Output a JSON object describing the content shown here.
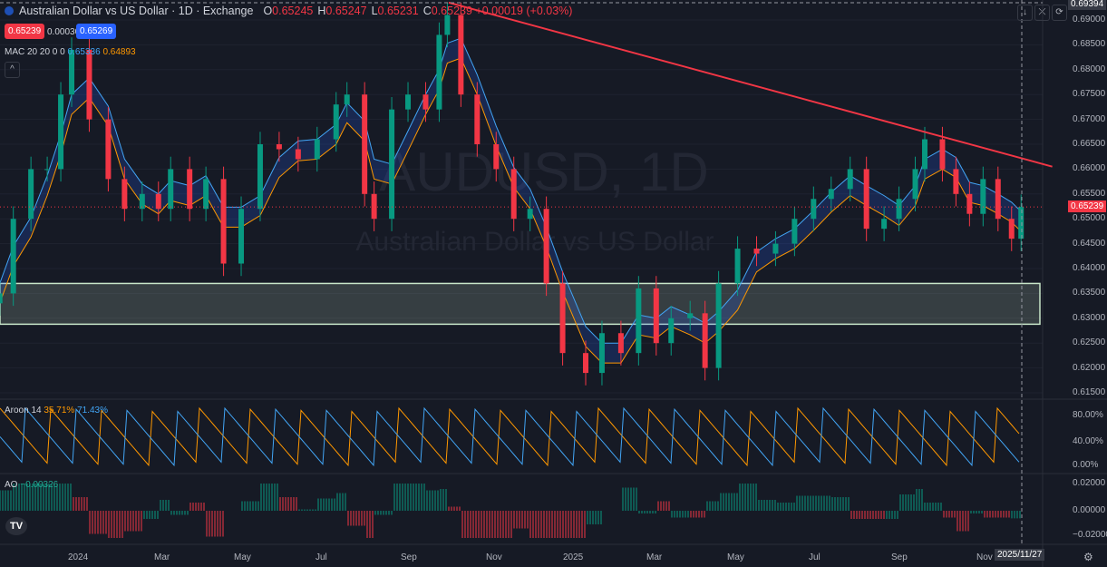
{
  "header": {
    "title": "Australian Dollar vs US Dollar · 1D · Exchange",
    "open": "0.65245",
    "high": "0.65247",
    "low": "0.65231",
    "close": "0.65239",
    "change": "+0.00019 (+0.03%)",
    "bid": "0.65239",
    "spread": "0.00030",
    "ask": "0.65269",
    "watermark_symbol": "AUDUSD, 1D",
    "watermark_name": "Australian Dollar vs US Dollar"
  },
  "indicators": {
    "mac": {
      "label": "MAC 20 20 0 0",
      "upper": "0.65336",
      "lower": "0.64893"
    },
    "aroon": {
      "label": "Aroon 14",
      "up": "35.71%",
      "down": "71.43%"
    },
    "ao": {
      "label": "AO",
      "value": "−0.00326"
    }
  },
  "price_axis": {
    "top_label": "0.69394",
    "current": "0.65239",
    "ticks": [
      "0.69000",
      "0.68500",
      "0.68000",
      "0.67500",
      "0.67000",
      "0.66500",
      "0.66000",
      "0.65500",
      "0.65000",
      "0.64500",
      "0.64000",
      "0.63500",
      "0.63000",
      "0.62500",
      "0.62000",
      "0.61500"
    ]
  },
  "aroon_axis": [
    "80.00%",
    "40.00%",
    "0.00%"
  ],
  "ao_axis": [
    "0.02000",
    "0.00000",
    "−0.02000"
  ],
  "time_axis": {
    "ticks": [
      "2024",
      "Mar",
      "May",
      "Jul",
      "Sep",
      "Nov",
      "2025",
      "Mar",
      "May",
      "Jul",
      "Sep",
      "Nov"
    ],
    "cursor": "2025/11/27"
  },
  "colors": {
    "up": "#089981",
    "down": "#f23645",
    "upper": "#2962ff",
    "band": "#42a5f5",
    "lower": "#ff9800",
    "trend": "#f23645",
    "zone": "#c8e6c9"
  },
  "chart_data": {
    "type": "candlestick",
    "xlabel": "",
    "ylabel": "",
    "ylim": [
      0.6125,
      0.6939
    ],
    "closes": [
      [
        "2023-11-05",
        0.635
      ],
      [
        "2023-11-15",
        0.65
      ],
      [
        "2023-11-28",
        0.66
      ],
      [
        "2023-12-10",
        0.66
      ],
      [
        "2023-12-20",
        0.675
      ],
      [
        "2023-12-28",
        0.684
      ],
      [
        "2024-01-10",
        0.67
      ],
      [
        "2024-01-24",
        0.658
      ],
      [
        "2024-02-05",
        0.652
      ],
      [
        "2024-02-18",
        0.655
      ],
      [
        "2024-03-01",
        0.652
      ],
      [
        "2024-03-10",
        0.66
      ],
      [
        "2024-03-24",
        0.652
      ],
      [
        "2024-04-05",
        0.658
      ],
      [
        "2024-04-18",
        0.641
      ],
      [
        "2024-05-01",
        0.652
      ],
      [
        "2024-05-15",
        0.665
      ],
      [
        "2024-05-29",
        0.664
      ],
      [
        "2024-06-12",
        0.662
      ],
      [
        "2024-06-26",
        0.666
      ],
      [
        "2024-07-10",
        0.673
      ],
      [
        "2024-07-18",
        0.675
      ],
      [
        "2024-07-31",
        0.655
      ],
      [
        "2024-08-07",
        0.65
      ],
      [
        "2024-08-20",
        0.672
      ],
      [
        "2024-09-01",
        0.675
      ],
      [
        "2024-09-14",
        0.672
      ],
      [
        "2024-09-24",
        0.687
      ],
      [
        "2024-09-30",
        0.691
      ],
      [
        "2024-10-10",
        0.675
      ],
      [
        "2024-10-22",
        0.665
      ],
      [
        "2024-11-05",
        0.66
      ],
      [
        "2024-11-18",
        0.65
      ],
      [
        "2024-11-30",
        0.652
      ],
      [
        "2024-12-12",
        0.637
      ],
      [
        "2024-12-24",
        0.623
      ],
      [
        "2025-01-10",
        0.619
      ],
      [
        "2025-01-22",
        0.627
      ],
      [
        "2025-02-05",
        0.623
      ],
      [
        "2025-02-18",
        0.636
      ],
      [
        "2025-03-03",
        0.625
      ],
      [
        "2025-03-14",
        0.63
      ],
      [
        "2025-03-28",
        0.631
      ],
      [
        "2025-04-08",
        0.62
      ],
      [
        "2025-04-18",
        0.637
      ],
      [
        "2025-05-02",
        0.644
      ],
      [
        "2025-05-16",
        0.643
      ],
      [
        "2025-05-30",
        0.645
      ],
      [
        "2025-06-13",
        0.65
      ],
      [
        "2025-06-27",
        0.654
      ],
      [
        "2025-07-10",
        0.656
      ],
      [
        "2025-07-24",
        0.66
      ],
      [
        "2025-08-05",
        0.648
      ],
      [
        "2025-08-18",
        0.65
      ],
      [
        "2025-08-29",
        0.654
      ],
      [
        "2025-09-10",
        0.66
      ],
      [
        "2025-09-17",
        0.666
      ],
      [
        "2025-09-30",
        0.66
      ],
      [
        "2025-10-10",
        0.655
      ],
      [
        "2025-10-20",
        0.651
      ],
      [
        "2025-10-30",
        0.658
      ],
      [
        "2025-11-10",
        0.65
      ],
      [
        "2025-11-20",
        0.646
      ],
      [
        "2025-11-27",
        0.6524
      ]
    ],
    "trendline": [
      [
        "2024-10-01",
        0.6935
      ],
      [
        "2025-12-20",
        0.6605
      ]
    ],
    "zone": {
      "from": 0.6288,
      "to": 0.637
    }
  }
}
